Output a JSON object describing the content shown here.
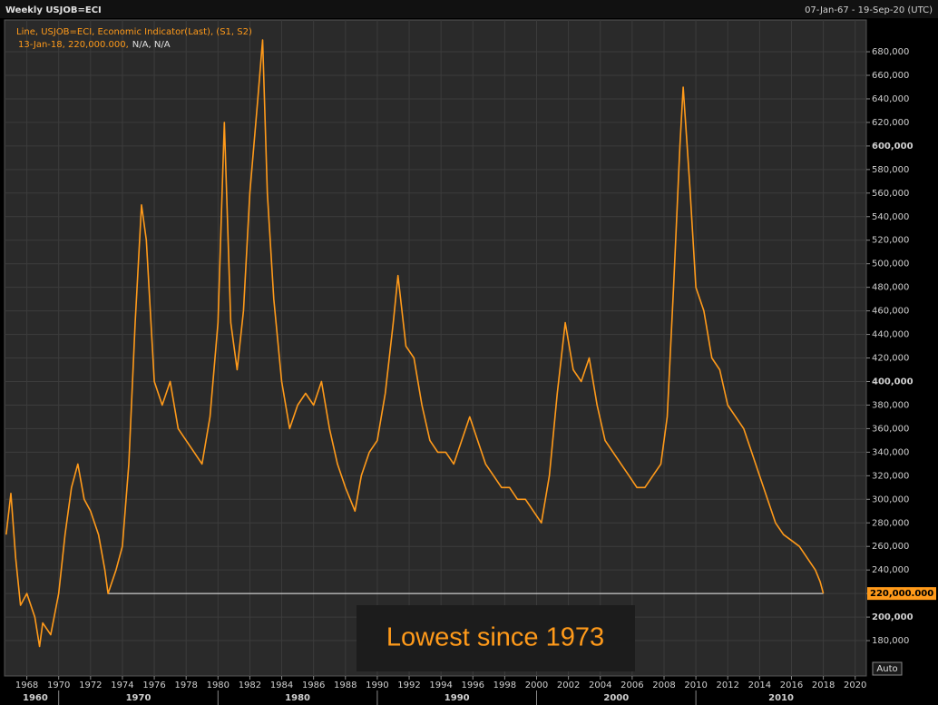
{
  "chart_data": {
    "type": "line",
    "title": "Weekly USJOB=ECI",
    "date_range": "07-Jan-67 - 19-Sep-20 (UTC)",
    "legend": "Line, USJOB=ECI, Economic Indicator(Last), (S1, S2)",
    "legend_detail": [
      "13-Jan-18, 220,000.000,",
      "N/A, N/A"
    ],
    "annotation": "Lowest since 1973",
    "button": "Auto",
    "grid": true,
    "xlim": [
      1966.6,
      2020.7
    ],
    "ylim": [
      150000,
      707000
    ],
    "xticks": [
      1968,
      1970,
      1972,
      1974,
      1976,
      1978,
      1980,
      1982,
      1984,
      1986,
      1988,
      1990,
      1992,
      1994,
      1996,
      1998,
      2000,
      2002,
      2004,
      2006,
      2008,
      2010,
      2012,
      2014,
      2016,
      2018,
      2020
    ],
    "decades": [
      1960,
      1970,
      1980,
      1990,
      2000,
      2010
    ],
    "yticks": [
      {
        "value": 180000,
        "label": "180,000"
      },
      {
        "value": 200000,
        "label": "200,000"
      },
      {
        "value": 220000,
        "label": "220,000"
      },
      {
        "value": 240000,
        "label": "240,000"
      },
      {
        "value": 260000,
        "label": "260,000"
      },
      {
        "value": 280000,
        "label": "280,000"
      },
      {
        "value": 300000,
        "label": "300,000"
      },
      {
        "value": 320000,
        "label": "320,000"
      },
      {
        "value": 340000,
        "label": "340,000"
      },
      {
        "value": 360000,
        "label": "360,000"
      },
      {
        "value": 380000,
        "label": "380,000"
      },
      {
        "value": 400000,
        "label": "400,000"
      },
      {
        "value": 420000,
        "label": "420,000"
      },
      {
        "value": 440000,
        "label": "440,000"
      },
      {
        "value": 460000,
        "label": "460,000"
      },
      {
        "value": 480000,
        "label": "480,000"
      },
      {
        "value": 500000,
        "label": "500,000"
      },
      {
        "value": 520000,
        "label": "520,000"
      },
      {
        "value": 540000,
        "label": "540,000"
      },
      {
        "value": 560000,
        "label": "560,000"
      },
      {
        "value": 580000,
        "label": "580,000"
      },
      {
        "value": 600000,
        "label": "600,000"
      },
      {
        "value": 620000,
        "label": "620,000"
      },
      {
        "value": 640000,
        "label": "640,000"
      },
      {
        "value": 660000,
        "label": "660,000"
      },
      {
        "value": 680000,
        "label": "680,000"
      }
    ],
    "reference_line": {
      "value": 220000,
      "label": "220,000.000",
      "x": [
        1973.1,
        2018.0
      ]
    },
    "series": [
      {
        "name": "USJOB=ECI",
        "color": "#ff9a1a",
        "x": [
          1966.7,
          1967.0,
          1967.3,
          1967.6,
          1968.0,
          1968.5,
          1968.8,
          1969.0,
          1969.5,
          1970.0,
          1970.4,
          1970.8,
          1971.2,
          1971.6,
          1972.0,
          1972.5,
          1972.9,
          1973.1,
          1973.6,
          1974.0,
          1974.4,
          1974.8,
          1975.2,
          1975.5,
          1976.0,
          1976.5,
          1977.0,
          1977.5,
          1978.0,
          1978.5,
          1979.0,
          1979.5,
          1980.0,
          1980.4,
          1980.8,
          1981.2,
          1981.6,
          1982.0,
          1982.5,
          1982.8,
          1983.1,
          1983.5,
          1984.0,
          1984.5,
          1985.0,
          1985.5,
          1986.0,
          1986.5,
          1987.0,
          1987.5,
          1988.0,
          1988.6,
          1989.0,
          1989.5,
          1990.0,
          1990.5,
          1991.0,
          1991.3,
          1991.8,
          1992.3,
          1992.8,
          1993.3,
          1993.8,
          1994.3,
          1994.8,
          1995.3,
          1995.8,
          1996.3,
          1996.8,
          1997.3,
          1997.8,
          1998.3,
          1998.8,
          1999.3,
          1999.8,
          2000.3,
          2000.8,
          2001.3,
          2001.8,
          2002.3,
          2002.8,
          2003.3,
          2003.8,
          2004.3,
          2004.8,
          2005.3,
          2005.8,
          2006.3,
          2006.8,
          2007.3,
          2007.8,
          2008.2,
          2008.6,
          2009.0,
          2009.2,
          2009.6,
          2010.0,
          2010.5,
          2011.0,
          2011.5,
          2012.0,
          2012.5,
          2013.0,
          2013.5,
          2014.0,
          2014.5,
          2015.0,
          2015.5,
          2016.0,
          2016.5,
          2017.0,
          2017.5,
          2017.8,
          2018.0
        ],
        "values": [
          270000,
          305000,
          250000,
          210000,
          220000,
          200000,
          175000,
          195000,
          185000,
          220000,
          270000,
          310000,
          330000,
          300000,
          290000,
          270000,
          240000,
          220000,
          240000,
          260000,
          330000,
          450000,
          550000,
          520000,
          400000,
          380000,
          400000,
          360000,
          350000,
          340000,
          330000,
          370000,
          450000,
          620000,
          450000,
          410000,
          460000,
          560000,
          640000,
          690000,
          560000,
          470000,
          400000,
          360000,
          380000,
          390000,
          380000,
          400000,
          360000,
          330000,
          310000,
          290000,
          320000,
          340000,
          350000,
          390000,
          450000,
          490000,
          430000,
          420000,
          380000,
          350000,
          340000,
          340000,
          330000,
          350000,
          370000,
          350000,
          330000,
          320000,
          310000,
          310000,
          300000,
          300000,
          290000,
          280000,
          320000,
          390000,
          450000,
          410000,
          400000,
          420000,
          380000,
          350000,
          340000,
          330000,
          320000,
          310000,
          310000,
          320000,
          330000,
          370000,
          480000,
          600000,
          650000,
          570000,
          480000,
          460000,
          420000,
          410000,
          380000,
          370000,
          360000,
          340000,
          320000,
          300000,
          280000,
          270000,
          265000,
          260000,
          250000,
          240000,
          230000,
          220000
        ]
      }
    ]
  }
}
